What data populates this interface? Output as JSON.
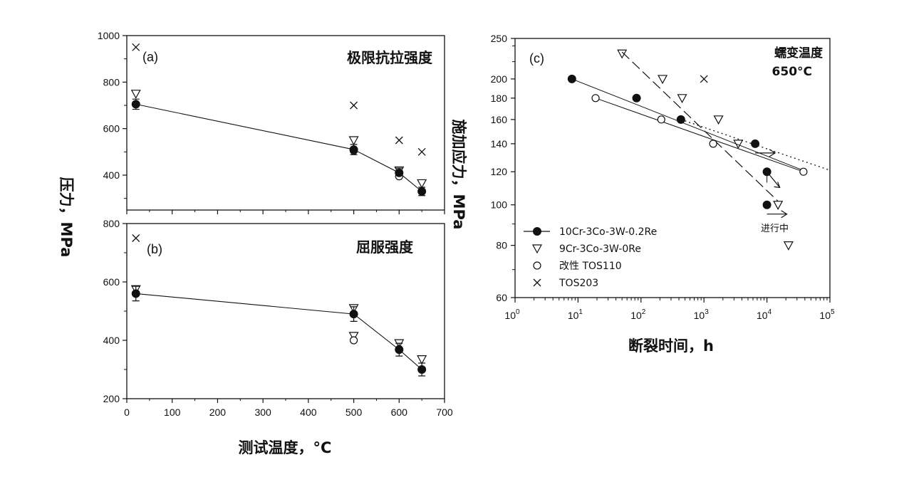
{
  "chart_data": [
    {
      "id": "a",
      "type": "scatter",
      "panel_label": "(a)",
      "title": "极限抗拉强度",
      "ylabel": "压力，MPa",
      "ylim": [
        250,
        1000
      ],
      "yticks": [
        400,
        600,
        800,
        1000
      ],
      "xlim": [
        0,
        700
      ],
      "series": [
        {
          "marker": "filled-circle",
          "connected": true,
          "points": [
            {
              "x": 20,
              "y": 705,
              "err": 22
            },
            {
              "x": 500,
              "y": 510,
              "err": 22
            },
            {
              "x": 600,
              "y": 410,
              "err": 20
            },
            {
              "x": 650,
              "y": 330,
              "err": 18
            }
          ]
        },
        {
          "marker": "down-triangle",
          "points": [
            {
              "x": 20,
              "y": 750
            },
            {
              "x": 500,
              "y": 550
            },
            {
              "x": 600,
              "y": 420
            },
            {
              "x": 650,
              "y": 365
            }
          ]
        },
        {
          "marker": "open-circle",
          "points": [
            {
              "x": 20,
              "y": 705
            },
            {
              "x": 500,
              "y": 505
            },
            {
              "x": 600,
              "y": 395
            },
            {
              "x": 650,
              "y": 330
            }
          ]
        },
        {
          "marker": "cross",
          "points": [
            {
              "x": 20,
              "y": 950
            },
            {
              "x": 500,
              "y": 700
            },
            {
              "x": 600,
              "y": 550
            },
            {
              "x": 650,
              "y": 500
            }
          ]
        }
      ]
    },
    {
      "id": "b",
      "type": "scatter",
      "panel_label": "(b)",
      "title": "屈服强度",
      "ylim": [
        200,
        800
      ],
      "yticks": [
        200,
        400,
        600,
        800
      ],
      "xlim": [
        0,
        700
      ],
      "xticks": [
        0,
        100,
        200,
        300,
        400,
        500,
        600,
        700
      ],
      "xlabel": "测试温度，°C",
      "series": [
        {
          "marker": "filled-circle",
          "connected": true,
          "points": [
            {
              "x": 20,
              "y": 560,
              "err": 25
            },
            {
              "x": 500,
              "y": 490,
              "err": 25
            },
            {
              "x": 600,
              "y": 368,
              "err": 22
            },
            {
              "x": 650,
              "y": 300,
              "err": 22
            }
          ]
        },
        {
          "marker": "down-triangle",
          "points": [
            {
              "x": 20,
              "y": 575
            },
            {
              "x": 500,
              "y": 510
            },
            {
              "x": 500,
              "y": 415
            },
            {
              "x": 600,
              "y": 390
            },
            {
              "x": 650,
              "y": 335
            }
          ]
        },
        {
          "marker": "open-circle",
          "points": [
            {
              "x": 500,
              "y": 400
            },
            {
              "x": 600,
              "y": 370
            },
            {
              "x": 650,
              "y": 300
            }
          ]
        },
        {
          "marker": "cross",
          "points": [
            {
              "x": 20,
              "y": 750
            }
          ]
        }
      ]
    },
    {
      "id": "c",
      "type": "scatter",
      "panel_label": "(c)",
      "annotation_title": "蠕变温度",
      "annotation_value": "650°C",
      "xlabel": "断裂时间，h",
      "ylabel": "施加应力，MPa",
      "x_scale": "log",
      "y_scale": "log",
      "xlim": [
        1,
        100000
      ],
      "ylim": [
        60,
        250
      ],
      "xticks": [
        {
          "value": 1,
          "base": "10",
          "exp": "0"
        },
        {
          "value": 10,
          "base": "10",
          "exp": "1"
        },
        {
          "value": 100,
          "base": "10",
          "exp": "2"
        },
        {
          "value": 1000,
          "base": "10",
          "exp": "3"
        },
        {
          "value": 10000,
          "base": "10",
          "exp": "4"
        },
        {
          "value": 100000,
          "base": "10",
          "exp": "5"
        }
      ],
      "yticks": [
        60,
        80,
        100,
        120,
        140,
        160,
        180,
        200,
        250
      ],
      "note": "进行中",
      "series": [
        {
          "name": "10Cr-3Co-3W-0.2Re",
          "marker": "filled-circle",
          "points": [
            {
              "x": 8,
              "y": 200
            },
            {
              "x": 85,
              "y": 180
            },
            {
              "x": 430,
              "y": 160
            },
            {
              "x": 6500,
              "y": 140
            },
            {
              "x": 10000,
              "y": 120
            },
            {
              "x": 10000,
              "y": 100
            }
          ]
        },
        {
          "name": "9Cr-3Co-3W-0Re",
          "marker": "down-triangle",
          "points": [
            {
              "x": 50,
              "y": 230
            },
            {
              "x": 220,
              "y": 200
            },
            {
              "x": 450,
              "y": 180
            },
            {
              "x": 1700,
              "y": 160
            },
            {
              "x": 3500,
              "y": 140
            },
            {
              "x": 15000,
              "y": 100
            },
            {
              "x": 22000,
              "y": 80
            }
          ]
        },
        {
          "name": "改性 TOS110",
          "marker": "open-circle",
          "points": [
            {
              "x": 19,
              "y": 180
            },
            {
              "x": 210,
              "y": 160
            },
            {
              "x": 1400,
              "y": 140
            },
            {
              "x": 38000,
              "y": 120
            }
          ]
        },
        {
          "name": "TOS203",
          "marker": "cross",
          "points": [
            {
              "x": 1000,
              "y": 200
            }
          ]
        }
      ]
    }
  ]
}
